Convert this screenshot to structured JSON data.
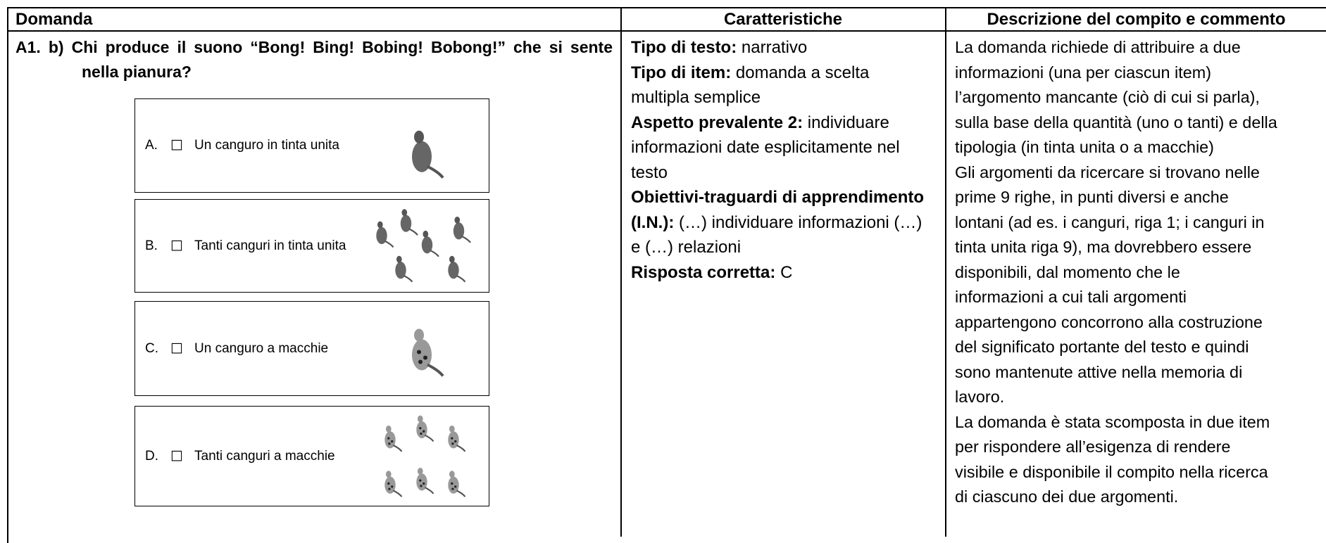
{
  "table": {
    "headers": [
      "Domanda",
      "Caratteristiche",
      "Descrizione del compito e commento"
    ],
    "question": {
      "number": "A1. b)",
      "text": "Chi produce il suono “Bong! Bing! Bobing! Bobong!” che si sente nella pianura?"
    },
    "options": [
      {
        "letter": "A.",
        "text": "Un canguro in tinta unita"
      },
      {
        "letter": "B.",
        "text": "Tanti canguri in tinta unita"
      },
      {
        "letter": "C.",
        "text": "Un canguro a macchie"
      },
      {
        "letter": "D.",
        "text": "Tanti canguri a macchie"
      }
    ],
    "characteristics": [
      {
        "label": "Tipo di testo:",
        "text": "narrativo"
      },
      {
        "label": "Tipo di item:",
        "text": "domanda a scelta multipla semplice"
      },
      {
        "label": "Aspetto prevalente 2:",
        "text": "individuare informazioni date esplicitamente nel testo"
      },
      {
        "label": "Obiettivi-traguardi di apprendimento (I.N.):",
        "text": "(…) individuare informazioni (…) e (…) relazioni"
      },
      {
        "label": "Risposta corretta:",
        "text": "C"
      }
    ],
    "description": [
      "La domanda richiede di attribuire a due",
      "informazioni (una per ciascun item)",
      "l’argomento mancante (ciò di cui si parla),",
      "sulla base della quantità (uno o tanti) e della",
      "tipologia (in tinta unita o a macchie)",
      "Gli argomenti da ricercare si trovano nelle",
      "prime 9 righe, in punti diversi e anche",
      "lontani (ad es. i canguri, riga 1; i canguri in",
      "tinta unita riga 9), ma dovrebbero essere",
      "disponibili, dal momento che le",
      "informazioni a cui tali argomenti",
      "appartengono concorrono alla costruzione",
      "del significato portante del testo e quindi",
      "sono mantenute attive nella memoria di",
      "lavoro.",
      "La domanda è stata scomposta in due item",
      "per rispondere all’esigenza di rendere",
      "visibile e disponibile il compito nella ricerca",
      "di ciascuno dei due argomenti."
    ]
  }
}
